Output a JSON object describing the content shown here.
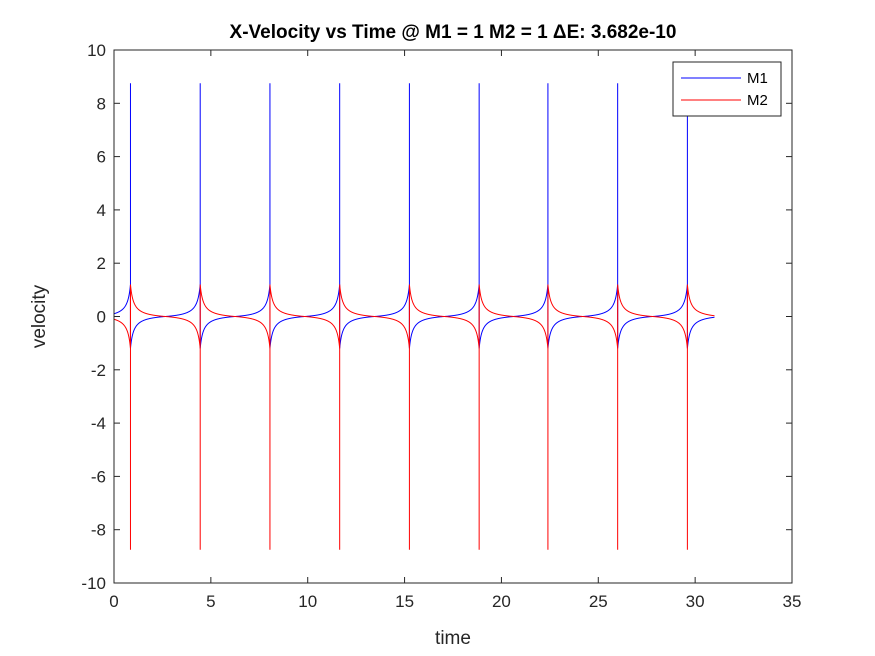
{
  "chart_data": {
    "type": "line",
    "title": "X-Velocity vs Time @ M1 = 1 M2 = 1 ΔE: 3.682e-10",
    "xlabel": "time",
    "ylabel": "velocity",
    "xlim": [
      0,
      35
    ],
    "ylim": [
      -10,
      10
    ],
    "xticks": [
      0,
      5,
      10,
      15,
      20,
      25,
      30,
      35
    ],
    "yticks": [
      -10,
      -8,
      -6,
      -4,
      -2,
      0,
      2,
      4,
      6,
      8,
      10
    ],
    "grid": false,
    "legend_location": "top-right",
    "t_range": [
      0,
      31
    ],
    "spike_times": [
      0.85,
      4.45,
      8.05,
      11.65,
      15.25,
      18.85,
      22.4,
      26.0,
      29.6
    ],
    "spike_peak": 8.75,
    "rest_peak": 1.2,
    "series": [
      {
        "name": "M1",
        "color": "#0000ff",
        "spike_sign": 1,
        "peak": 8.75,
        "trough": -0.65
      },
      {
        "name": "M2",
        "color": "#ff0000",
        "spike_sign": -1,
        "peak": -8.75,
        "trough": 0.65
      }
    ]
  }
}
